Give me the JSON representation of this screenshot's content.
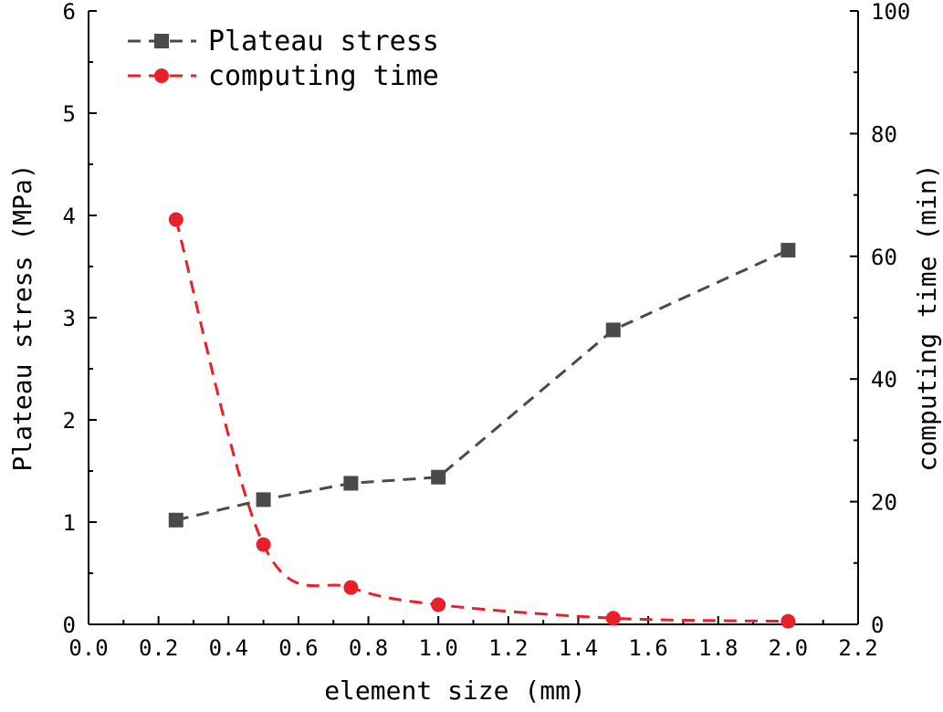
{
  "chart_data": {
    "type": "line",
    "xlabel": "element size (mm)",
    "ylabel_left": "Plateau stress (MPa)",
    "ylabel_right": "computing time (min)",
    "xlim": [
      0.0,
      2.2
    ],
    "ylim_left": [
      0,
      6
    ],
    "ylim_right": [
      0,
      100
    ],
    "x_ticks": [
      "0.0",
      "0.2",
      "0.4",
      "0.6",
      "0.8",
      "1.0",
      "1.2",
      "1.4",
      "1.6",
      "1.8",
      "2.0",
      "2.2"
    ],
    "y_left_ticks": [
      "0",
      "1",
      "2",
      "3",
      "4",
      "5",
      "6"
    ],
    "y_right_ticks": [
      "0",
      "20",
      "40",
      "60",
      "80",
      "100"
    ],
    "grid": false,
    "legend_position": "top-left",
    "series": [
      {
        "name": "Plateau stress",
        "axis": "left",
        "marker": "square",
        "color": "#4a4a4a",
        "x": [
          0.25,
          0.5,
          0.75,
          1.0,
          1.5,
          2.0
        ],
        "y": [
          1.02,
          1.22,
          1.38,
          1.44,
          2.88,
          3.66
        ]
      },
      {
        "name": "computing time",
        "axis": "right",
        "marker": "circle",
        "color": "#e8202a",
        "x": [
          0.25,
          0.5,
          0.75,
          1.0,
          1.5,
          2.0
        ],
        "y": [
          66,
          13,
          6,
          3.2,
          1.0,
          0.5
        ]
      }
    ]
  }
}
